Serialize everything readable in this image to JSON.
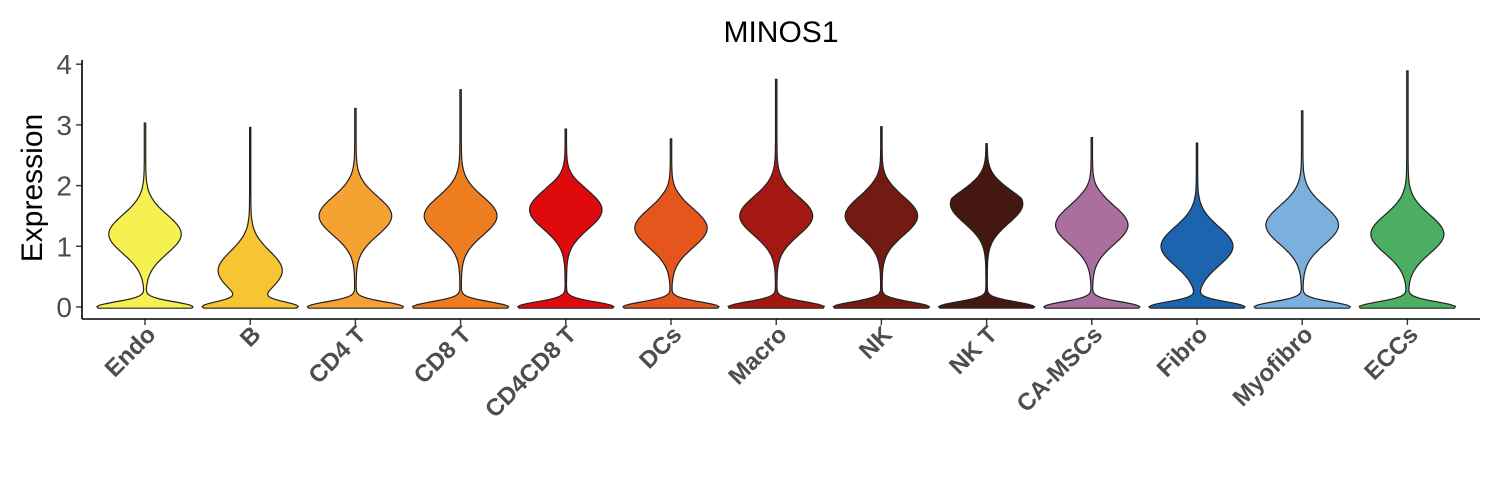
{
  "chart_data": {
    "type": "violin",
    "title": "MINOS1",
    "ylabel": "Expression",
    "xlabel": "",
    "ylim": [
      -0.2,
      4.1
    ],
    "yticks": [
      0,
      1,
      2,
      3,
      4
    ],
    "categories": [
      "Endo",
      "B",
      "CD4 T",
      "CD8 T",
      "CD4CD8 T",
      "DCs",
      "Macro",
      "NK",
      "NK T",
      "CA-MSCs",
      "Fibro",
      "Myofibro",
      "ECCs"
    ],
    "colors": [
      "#F7F051",
      "#F7C531",
      "#F4A333",
      "#EE7D1F",
      "#DF0A0D",
      "#E5561D",
      "#A41813",
      "#731A12",
      "#441810",
      "#AA6F9F",
      "#1C64AE",
      "#7BAFDD",
      "#4BAE60"
    ],
    "max_values": [
      3.03,
      2.96,
      3.27,
      3.58,
      2.93,
      2.77,
      3.75,
      2.97,
      2.69,
      2.79,
      2.7,
      3.23,
      3.89
    ],
    "upper_mode": [
      1.2,
      0.6,
      1.5,
      1.5,
      1.6,
      1.3,
      1.5,
      1.5,
      1.7,
      1.35,
      1.0,
      1.35,
      1.2
    ],
    "legend": "none",
    "grid": false
  }
}
